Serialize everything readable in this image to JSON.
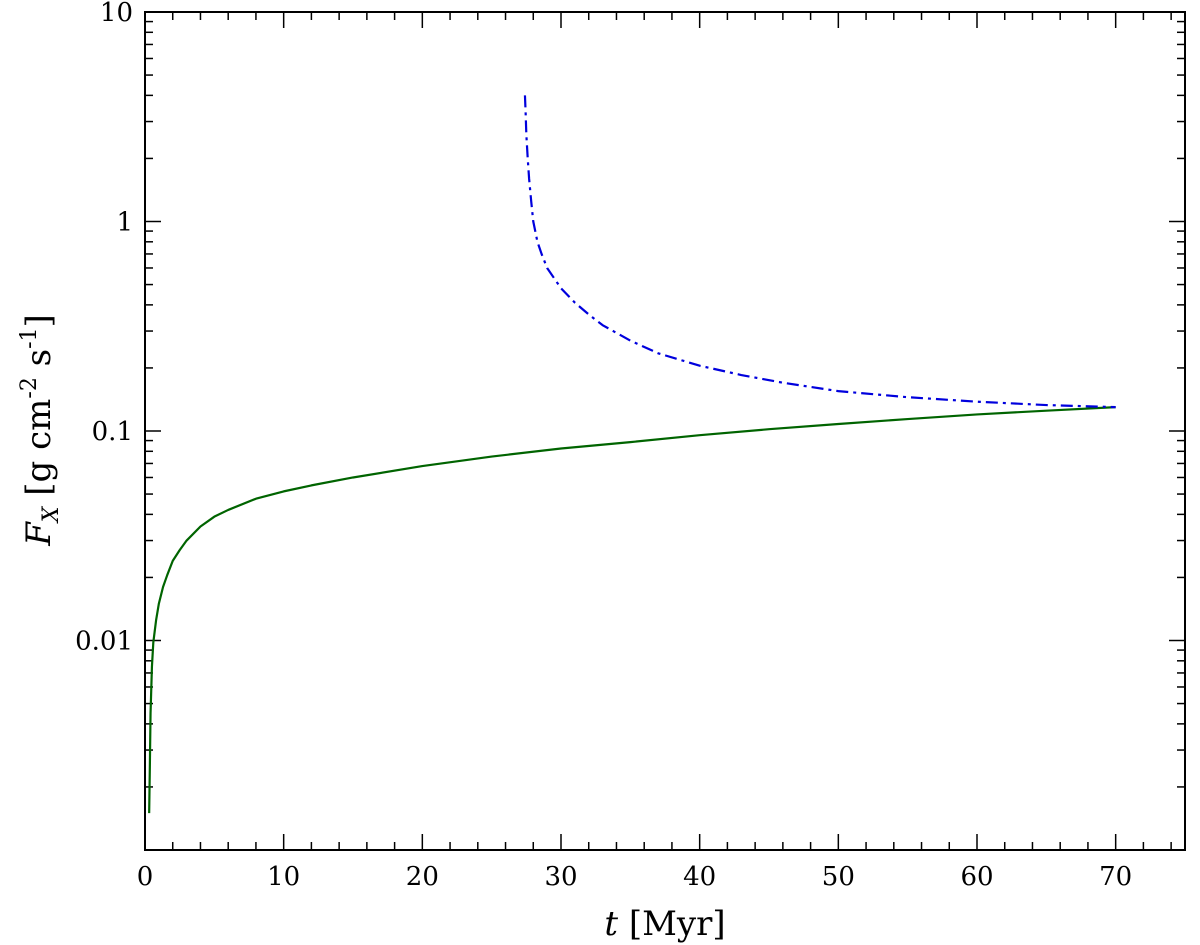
{
  "chart_data": {
    "type": "line",
    "xlabel": "t [Myr]",
    "ylabel": "F_X [g cm^-2 s^-1]",
    "xlim": [
      0,
      75
    ],
    "ylim": [
      0.001,
      10
    ],
    "yscale": "log",
    "grid": false,
    "x_ticks": [
      0,
      10,
      20,
      30,
      40,
      50,
      60,
      70
    ],
    "x_tick_labels": [
      "0",
      "10",
      "20",
      "30",
      "40",
      "50",
      "60",
      "70"
    ],
    "y_ticks": [
      0.01,
      0.1,
      1,
      10
    ],
    "y_tick_labels": [
      "0.01",
      "0.1",
      "1",
      "10"
    ],
    "series": [
      {
        "color": "#006400",
        "style": "solid",
        "x": [
          0.3,
          0.35,
          0.4,
          0.5,
          0.6,
          0.8,
          1.0,
          1.3,
          1.6,
          2.0,
          2.5,
          3.0,
          4.0,
          5.0,
          6.0,
          8.0,
          10,
          12,
          15,
          20,
          25,
          30,
          35,
          40,
          45,
          50,
          55,
          60,
          65,
          70
        ],
        "y": [
          0.0015,
          0.0025,
          0.0045,
          0.0075,
          0.0098,
          0.0125,
          0.015,
          0.018,
          0.0205,
          0.024,
          0.027,
          0.03,
          0.035,
          0.039,
          0.042,
          0.0475,
          0.0515,
          0.055,
          0.06,
          0.068,
          0.0755,
          0.0825,
          0.0885,
          0.0955,
          0.102,
          0.108,
          0.114,
          0.12,
          0.125,
          0.13
        ]
      },
      {
        "color": "#0000dd",
        "style": "dashdot",
        "x": [
          27.4,
          27.45,
          27.5,
          27.6,
          27.7,
          27.85,
          28.0,
          28.3,
          28.6,
          29.0,
          30,
          31,
          32,
          33,
          35,
          37,
          40,
          43,
          46,
          50,
          55,
          60,
          65,
          70
        ],
        "y": [
          4.0,
          3.3,
          2.6,
          2.0,
          1.6,
          1.25,
          1.0,
          0.8,
          0.7,
          0.6,
          0.48,
          0.41,
          0.36,
          0.32,
          0.27,
          0.235,
          0.205,
          0.185,
          0.17,
          0.155,
          0.145,
          0.138,
          0.133,
          0.13
        ]
      }
    ]
  }
}
